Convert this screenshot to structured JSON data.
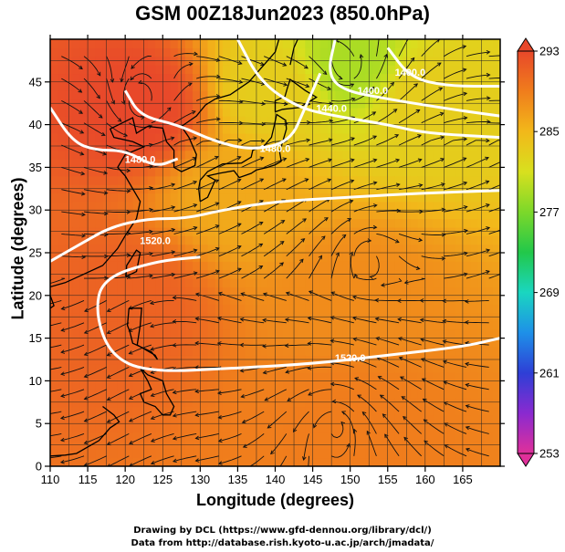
{
  "title": "GSM 00Z18Jun2023 (850.0hPa)",
  "xlabel": "Longitude (degrees)",
  "ylabel": "Latitude  (degrees)",
  "credits": [
    "Drawing by DCL (https://www.gfd-dennou.org/library/dcl/)",
    "Data from http://database.rish.kyoto-u.ac.jp/arch/jmadata/"
  ],
  "chart_data": {
    "type": "heatmap",
    "title": "GSM 00Z18Jun2023 (850.0hPa)",
    "xlabel": "Longitude (degrees)",
    "ylabel": "Latitude  (degrees)",
    "xlim": [
      110,
      170
    ],
    "ylim": [
      0,
      50
    ],
    "x_ticks": [
      "110",
      "115",
      "120",
      "125",
      "130",
      "135",
      "140",
      "145",
      "150",
      "155",
      "160",
      "165"
    ],
    "y_ticks": [
      "0",
      "5",
      "10",
      "15",
      "20",
      "25",
      "30",
      "35",
      "40",
      "45"
    ],
    "colorbar": {
      "ticks": [
        "293",
        "285",
        "277",
        "269",
        "261",
        "253"
      ],
      "min": 253,
      "max": 293,
      "colors": [
        "#e0309a",
        "#8a2ad0",
        "#2e3fd6",
        "#1e90e8",
        "#1ad6c0",
        "#22c84a",
        "#7cd82a",
        "#d8e01e",
        "#f2b81a",
        "#f07d1c",
        "#e8482a"
      ]
    },
    "temperature_regions": [
      {
        "lon": 150,
        "lat": 47,
        "value": 279
      },
      {
        "lon": 160,
        "lat": 43,
        "value": 283
      },
      {
        "lon": 140,
        "lat": 44,
        "value": 283
      },
      {
        "lon": 122,
        "lat": 42,
        "value": 293
      },
      {
        "lon": 135,
        "lat": 32,
        "value": 286
      },
      {
        "lon": 150,
        "lat": 20,
        "value": 288
      },
      {
        "lon": 120,
        "lat": 20,
        "value": 291
      },
      {
        "lon": 150,
        "lat": 5,
        "value": 289
      }
    ],
    "contours": [
      {
        "label": "1480.0",
        "points": [
          [
            110,
            42
          ],
          [
            113,
            38
          ],
          [
            116,
            37
          ],
          [
            120,
            37
          ],
          [
            124,
            35
          ],
          [
            127,
            36
          ]
        ],
        "label_at": [
          122,
          35.5
        ]
      },
      {
        "label": "1480.0",
        "points": [
          [
            120,
            44
          ],
          [
            122,
            41
          ],
          [
            127,
            40
          ],
          [
            132,
            38
          ],
          [
            137,
            37
          ],
          [
            142,
            38
          ],
          [
            144,
            42
          ],
          [
            146,
            46
          ]
        ],
        "label_at": [
          140,
          36.8
        ]
      },
      {
        "label": "1440.0",
        "points": [
          [
            135,
            50
          ],
          [
            138,
            45
          ],
          [
            143,
            42
          ],
          [
            148,
            41
          ],
          [
            155,
            40
          ],
          [
            160,
            39
          ],
          [
            170,
            38.5
          ]
        ],
        "label_at": [
          147.5,
          41.5
        ]
      },
      {
        "label": "1400.0",
        "points": [
          [
            148,
            50
          ],
          [
            147,
            46
          ],
          [
            149,
            44
          ],
          [
            155,
            43
          ],
          [
            162,
            42
          ],
          [
            170,
            41
          ]
        ],
        "label_at": [
          153,
          43.6
        ]
      },
      {
        "label": "1400.0",
        "points": [
          [
            155,
            49
          ],
          [
            158,
            45.5
          ],
          [
            163,
            44.5
          ],
          [
            170,
            44.5
          ]
        ],
        "label_at": [
          158,
          45.7
        ]
      },
      {
        "label": "1520.0",
        "points": [
          [
            110,
            24
          ],
          [
            114,
            26
          ],
          [
            118,
            28
          ],
          [
            123,
            29
          ],
          [
            128,
            29
          ],
          [
            133,
            30
          ],
          [
            140,
            31
          ],
          [
            150,
            31.5
          ],
          [
            160,
            32
          ],
          [
            170,
            32.3
          ]
        ],
        "label_at": [
          124,
          26
        ]
      },
      {
        "label": "1520.0",
        "points": [
          [
            130,
            24.5
          ],
          [
            124,
            24
          ],
          [
            117,
            22
          ],
          [
            116,
            18
          ],
          [
            118,
            13
          ],
          [
            123,
            11
          ],
          [
            135,
            11.5
          ],
          [
            145,
            12
          ],
          [
            155,
            13
          ],
          [
            165,
            14
          ],
          [
            170,
            15
          ]
        ],
        "label_at": [
          150,
          12.3
        ]
      }
    ],
    "wind": "streamlines"
  }
}
